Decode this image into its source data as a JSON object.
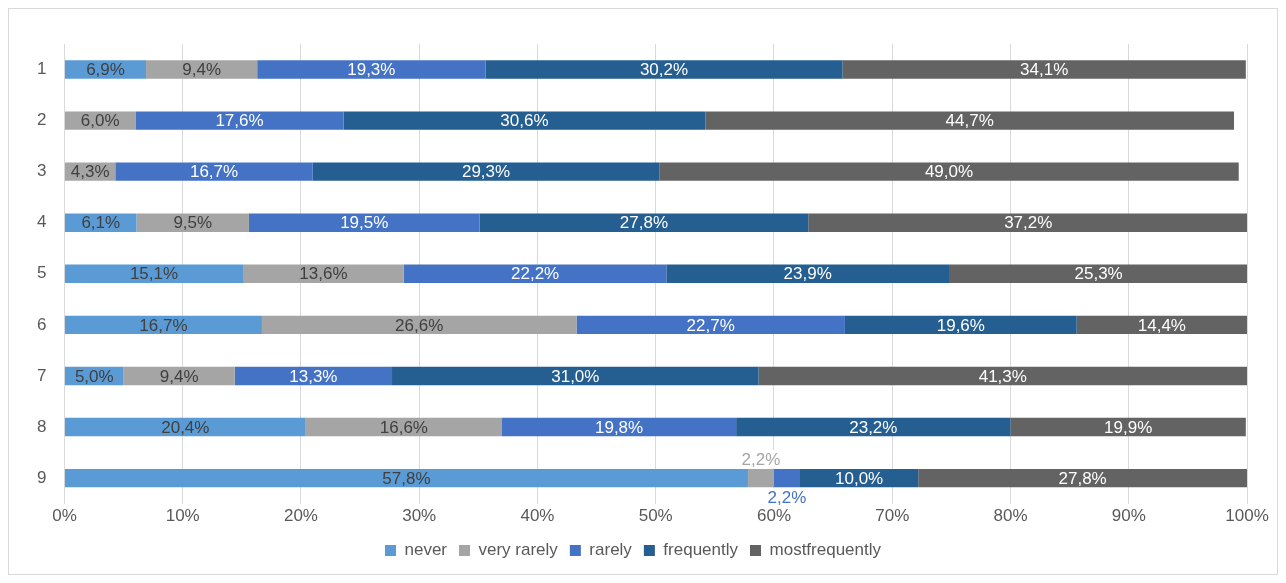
{
  "chart_data": {
    "type": "bar",
    "orientation": "horizontal",
    "stacked": true,
    "categories": [
      "1",
      "2",
      "3",
      "4",
      "5",
      "6",
      "7",
      "8",
      "9"
    ],
    "series": [
      {
        "name": "never",
        "color": "#5b9bd5",
        "values": [
          6.9,
          null,
          null,
          6.1,
          15.1,
          16.7,
          5.0,
          20.4,
          57.8
        ],
        "value_labels": [
          "6,9%",
          null,
          null,
          "6,1%",
          "15,1%",
          "16,7%",
          "5,0%",
          "20,4%",
          "57,8%"
        ]
      },
      {
        "name": "very rarely",
        "color": "#a5a5a5",
        "values": [
          9.4,
          6.0,
          4.3,
          9.5,
          13.6,
          26.6,
          9.4,
          16.6,
          2.2
        ],
        "value_labels": [
          "9,4%",
          "6,0%",
          "4,3%",
          "9,5%",
          "13,6%",
          "26,6%",
          "9,4%",
          "16,6%",
          "2,2%"
        ]
      },
      {
        "name": "rarely",
        "color": "#4472c4",
        "values": [
          19.3,
          17.6,
          16.7,
          19.5,
          22.2,
          22.7,
          13.3,
          19.8,
          2.2
        ],
        "value_labels": [
          "19,3%",
          "17,6%",
          "16,7%",
          "19,5%",
          "22,2%",
          "22,7%",
          "13,3%",
          "19,8%",
          "2,2%"
        ]
      },
      {
        "name": "frequently",
        "color": "#255e91",
        "values": [
          30.2,
          30.6,
          29.3,
          27.8,
          23.9,
          19.6,
          31.0,
          23.2,
          10.0
        ],
        "value_labels": [
          "30,2%",
          "30,6%",
          "29,3%",
          "27,8%",
          "23,9%",
          "19,6%",
          "31,0%",
          "23,2%",
          "10,0%"
        ]
      },
      {
        "name": "mostfrequently",
        "color": "#636363",
        "values": [
          34.1,
          44.7,
          49.0,
          37.2,
          25.3,
          14.4,
          41.3,
          19.9,
          27.8
        ],
        "value_labels": [
          "34,1%",
          "44,7%",
          "49,0%",
          "37,2%",
          "25,3%",
          "14,4%",
          "41,3%",
          "19,9%",
          "27,8%"
        ]
      }
    ],
    "xlim": [
      0,
      100
    ],
    "xticks": [
      {
        "value": 0,
        "label": "0%"
      },
      {
        "value": 10,
        "label": "10%"
      },
      {
        "value": 20,
        "label": "20%"
      },
      {
        "value": 30,
        "label": "30%"
      },
      {
        "value": 40,
        "label": "40%"
      },
      {
        "value": 50,
        "label": "50%"
      },
      {
        "value": 60,
        "label": "60%"
      },
      {
        "value": 70,
        "label": "70%"
      },
      {
        "value": 80,
        "label": "80%"
      },
      {
        "value": 90,
        "label": "90%"
      },
      {
        "value": 100,
        "label": "100%"
      }
    ],
    "grid": "x",
    "legend": "bottom"
  }
}
